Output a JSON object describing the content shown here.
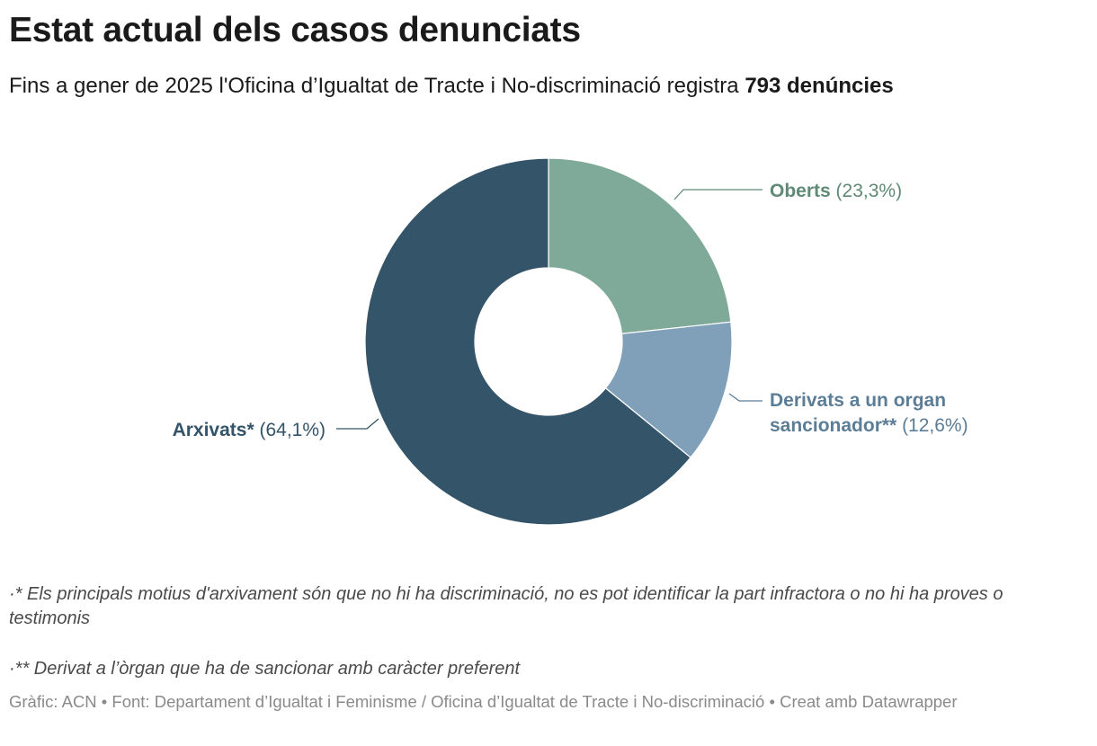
{
  "title": "Estat actual dels casos denunciats",
  "subtitle": {
    "text": "Fins a gener de 2025 l'Oficina d’Igualtat de Tracte i No-discriminació registra ",
    "highlight": "793 denúncies"
  },
  "chart_data": {
    "type": "pie",
    "donut": true,
    "slices": [
      {
        "name": "Oberts",
        "value": 23.3,
        "value_label": "(23,3%)",
        "color": "#7fa998",
        "label_color": "#5e8a76"
      },
      {
        "name": "Derivats a un organ sancionador**",
        "name_lines": [
          "Derivats a un organ",
          "sancionador**"
        ],
        "value": 12.6,
        "value_label": "(12,6%)",
        "color": "#7fa0b8",
        "label_color": "#5b7d96"
      },
      {
        "name": "Arxivats*",
        "value": 64.1,
        "value_label": "(64,1%)",
        "color": "#345469",
        "label_color": "#345469"
      }
    ]
  },
  "notes": [
    "·* Els principals motius d'arxivament són que no hi ha discriminació, no es pot identificar la part infractora o no hi ha proves o testimonis",
    "·** Derivat a l’òrgan que ha de sancionar amb caràcter preferent"
  ],
  "footer": "Gràfic: ACN • Font: Departament d’Igualtat i Feminisme / Oficina d’Igualtat de Tracte i No-discriminació • Creat amb Datawrapper"
}
